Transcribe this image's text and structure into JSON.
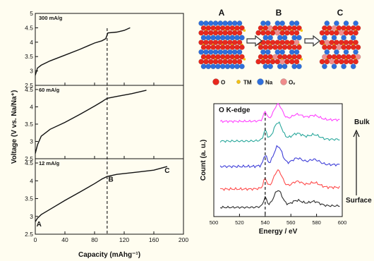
{
  "chart_data": [
    {
      "type": "line",
      "xlabel": "Capacity (mAhg⁻¹)",
      "ylabel": "Voltage (V vs. Na/Na⁺)",
      "xlim": [
        0,
        200
      ],
      "xticks": [
        0,
        40,
        80,
        120,
        160,
        200
      ],
      "ylim": [
        2.5,
        5.0
      ],
      "ylim_panel": [
        2.5,
        4.5
      ],
      "yticks_top": [
        2.5,
        3.0,
        3.5,
        4.0,
        4.5,
        5.0
      ],
      "yticks_mid": [
        2.5,
        3.0,
        3.5,
        4.0,
        4.5
      ],
      "yticks_bottom": [
        2.5,
        3.0,
        3.5,
        4.0,
        4.5
      ],
      "vline_x": 97,
      "panels": [
        {
          "label": "300 mA/g",
          "x": [
            0,
            3,
            8,
            20,
            40,
            60,
            80,
            90,
            95,
            98,
            110,
            120,
            128
          ],
          "y": [
            2.85,
            3.1,
            3.2,
            3.35,
            3.55,
            3.75,
            3.97,
            4.05,
            4.12,
            4.32,
            4.35,
            4.41,
            4.5
          ]
        },
        {
          "label": "60 mA/g",
          "x": [
            0,
            3,
            8,
            20,
            40,
            60,
            80,
            90,
            95,
            98,
            110,
            130,
            150
          ],
          "y": [
            2.65,
            2.9,
            3.15,
            3.35,
            3.55,
            3.78,
            4.02,
            4.15,
            4.22,
            4.25,
            4.3,
            4.38,
            4.48
          ]
        },
        {
          "label": "12 mA/g",
          "x": [
            0,
            3,
            8,
            20,
            40,
            60,
            80,
            90,
            97,
            110,
            140,
            160,
            178
          ],
          "y": [
            2.85,
            2.95,
            3.05,
            3.2,
            3.45,
            3.68,
            3.92,
            4.05,
            4.12,
            4.18,
            4.25,
            4.3,
            4.4
          ],
          "annotations": [
            {
              "text": "A",
              "x": 5,
              "y": 2.72
            },
            {
              "text": "B",
              "x": 102,
              "y": 3.98
            },
            {
              "text": "C",
              "x": 178,
              "y": 4.22
            }
          ]
        }
      ]
    },
    {
      "type": "line",
      "title": "O K-edge",
      "xlabel": "Energy / eV",
      "ylabel": "Count (a. u.)",
      "xlim": [
        500,
        600
      ],
      "xticks": [
        500,
        520,
        540,
        560,
        580,
        600
      ],
      "vline_x": 540,
      "bulk_label": "Bulk",
      "surface_label": "Surface",
      "series": [
        {
          "color": "#2b2b2b",
          "offset": 0
        },
        {
          "color": "#ff4a4a",
          "offset": 1
        },
        {
          "color": "#3f3fd8",
          "offset": 2
        },
        {
          "color": "#2aa89c",
          "offset": 3
        },
        {
          "color": "#ff44ff",
          "offset": 4
        }
      ]
    }
  ],
  "schematic": {
    "panels": [
      "A",
      "B",
      "C"
    ],
    "legend": [
      {
        "label": "O",
        "color": "#e8281e"
      },
      {
        "label": "TM",
        "color": "#f5c211"
      },
      {
        "label": "Na",
        "color": "#2f6fdc"
      },
      {
        "label": "Oᵥ",
        "color": "#f08c8c"
      }
    ]
  }
}
